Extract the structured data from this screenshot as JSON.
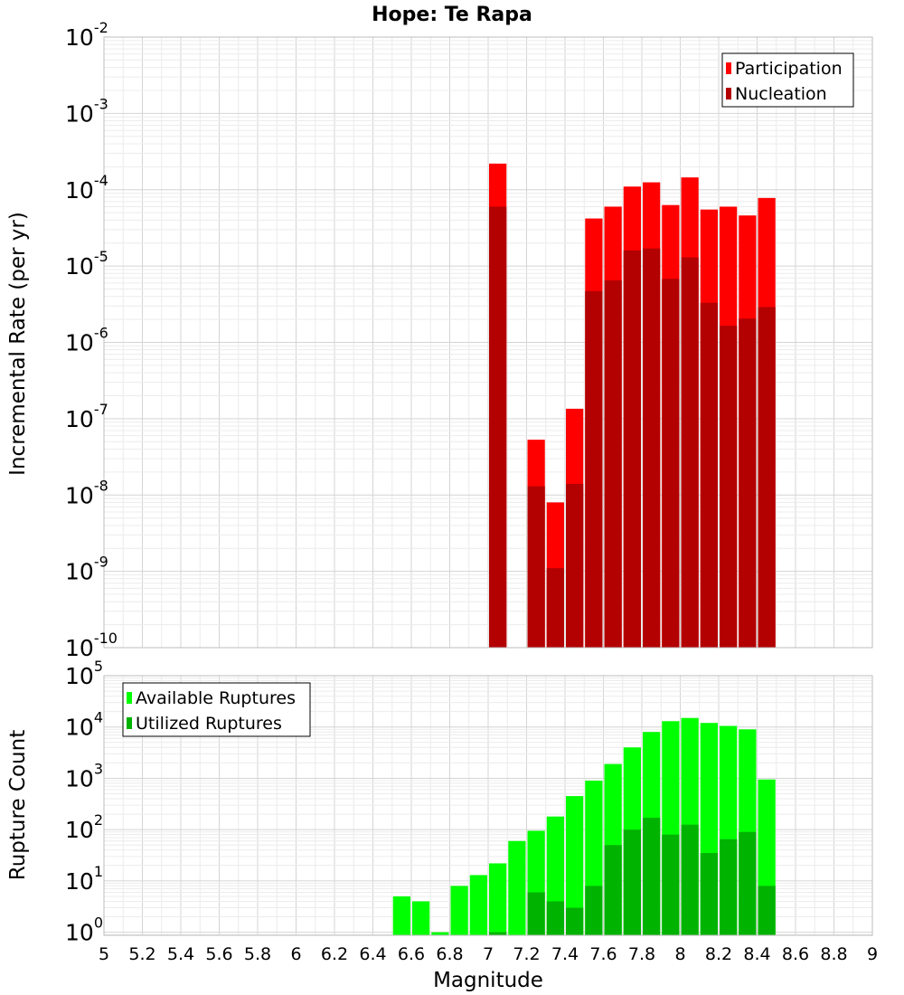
{
  "chart_data": {
    "title": "Hope: Te Rapa",
    "xlabel": "Magnitude",
    "x_ticks": [
      "5",
      "5.2",
      "5.4",
      "5.6",
      "5.8",
      "6",
      "6.2",
      "6.4",
      "6.6",
      "6.8",
      "7",
      "7.2",
      "7.4",
      "7.6",
      "7.8",
      "8",
      "8.2",
      "8.4",
      "8.6",
      "8.8",
      "9"
    ],
    "xlim": [
      5,
      9
    ],
    "bin_width": 0.1,
    "panels": [
      {
        "type": "bar",
        "ylabel": "Incremental Rate (per yr)",
        "yscale": "log",
        "ylim_exp": [
          -10,
          -2
        ],
        "y_ticks": [
          "10^-2",
          "10^-3",
          "10^-4",
          "10^-5",
          "10^-6",
          "10^-7",
          "10^-8",
          "10^-9",
          "10^-10"
        ],
        "legend": {
          "position": "top-right"
        },
        "x": [
          7.05,
          7.25,
          7.35,
          7.45,
          7.55,
          7.65,
          7.75,
          7.85,
          7.95,
          8.05,
          8.15,
          8.25,
          8.35,
          8.45
        ],
        "series": [
          {
            "name": "Participation",
            "color": "#ff0000",
            "values": [
              0.00022,
              5.3e-08,
              8e-09,
              1.35e-07,
              4.2e-05,
              6e-05,
              0.00011,
              0.000125,
              6.3e-05,
              0.000145,
              5.5e-05,
              6e-05,
              4.6e-05,
              7.8e-05
            ]
          },
          {
            "name": "Nucleation",
            "color": "#b30000",
            "values": [
              6e-05,
              1.3e-08,
              1.1e-09,
              1.4e-08,
              4.7e-06,
              6.5e-06,
              1.6e-05,
              1.7e-05,
              6.8e-06,
              1.3e-05,
              3.3e-06,
              1.65e-06,
              2.05e-06,
              2.9e-06
            ]
          }
        ]
      },
      {
        "type": "bar",
        "ylabel": "Rupture Count",
        "yscale": "log",
        "ylim_exp": [
          -0.06,
          5
        ],
        "y_ticks": [
          "10^5",
          "10^4",
          "10^3",
          "10^2",
          "10^1",
          "10^0"
        ],
        "legend": {
          "position": "top-left"
        },
        "x": [
          6.55,
          6.65,
          6.75,
          6.85,
          6.95,
          7.05,
          7.15,
          7.25,
          7.35,
          7.45,
          7.55,
          7.65,
          7.75,
          7.85,
          7.95,
          8.05,
          8.15,
          8.25,
          8.35,
          8.45
        ],
        "series": [
          {
            "name": "Available Ruptures",
            "color": "#00ff00",
            "values": [
              5,
              4,
              1,
              8,
              13,
              22,
              60,
              95,
              180,
              450,
              900,
              1900,
              4000,
              8000,
              13000,
              15000,
              12000,
              10500,
              9000,
              950
            ]
          },
          {
            "name": "Utilized Ruptures",
            "color": "#00b300",
            "values": [
              0,
              0,
              0,
              0,
              0,
              1,
              0,
              6,
              4,
              3,
              8,
              50,
              100,
              170,
              80,
              125,
              35,
              65,
              90,
              8
            ]
          }
        ]
      }
    ]
  }
}
